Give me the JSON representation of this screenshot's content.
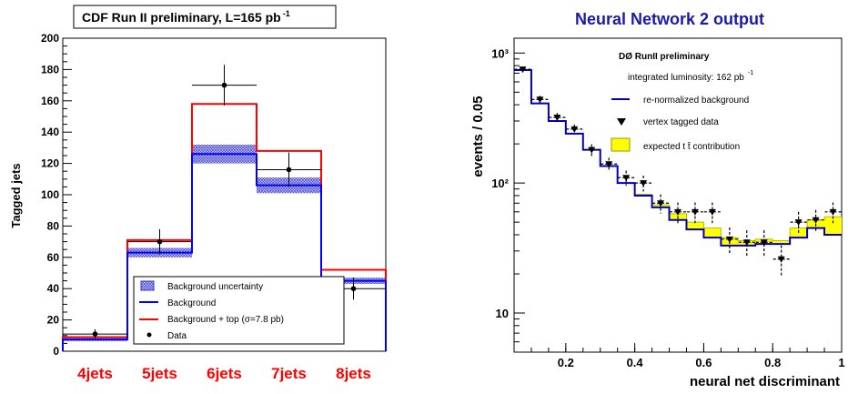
{
  "chart_data": [
    {
      "type": "bar",
      "title": "CDF Run II preliminary, L=165 pb",
      "title_sup": "-1",
      "ylabel": "Tagged jets",
      "xlabel": "",
      "ylim": [
        0,
        200
      ],
      "yticks": [
        0,
        20,
        40,
        60,
        80,
        100,
        120,
        140,
        160,
        180,
        200
      ],
      "categories": [
        "4jets",
        "5jets",
        "6jets",
        "7jets",
        "8jets"
      ],
      "category_color": "#ff0000",
      "series": [
        {
          "name": "Background",
          "values": [
            7.5,
            63,
            126,
            106,
            45
          ],
          "uncertainty_low": [
            6.5,
            60,
            120,
            101,
            43
          ],
          "uncertainty_high": [
            8.5,
            66,
            132,
            111,
            47
          ],
          "color": "#0000ff"
        },
        {
          "name": "Background + top (σ=7.8 pb)",
          "values": [
            9,
            71,
            158,
            128,
            52
          ],
          "color": "#ff0000"
        },
        {
          "name": "Data",
          "values": [
            11,
            70,
            170,
            116,
            40
          ],
          "err": [
            3,
            8,
            13,
            11,
            7
          ],
          "color": "#000000"
        }
      ],
      "uncertainty_band_name": "Background uncertainty",
      "legend": [
        "Background uncertainty",
        "Background",
        "Background + top (σ=7.8 pb)",
        "Data"
      ],
      "legend_position": "bottom-center",
      "grid": false
    },
    {
      "type": "line",
      "title": "Neural Network 2 output",
      "title_color": "#1a1aa8",
      "xlabel": "neural net discriminant",
      "ylabel": "events / 0.05",
      "yscale": "log",
      "xlim": [
        0.05,
        1.0
      ],
      "ylim": [
        5,
        1300
      ],
      "xticks": [
        0.2,
        0.4,
        0.6,
        0.8,
        1
      ],
      "ytick_labels": [
        "10",
        "10²",
        "10³"
      ],
      "yticks": [
        10,
        100,
        1000
      ],
      "x_bin_edges": [
        0.05,
        0.1,
        0.15,
        0.2,
        0.25,
        0.3,
        0.35,
        0.4,
        0.45,
        0.5,
        0.55,
        0.6,
        0.65,
        0.7,
        0.75,
        0.8,
        0.85,
        0.9,
        0.95,
        1.0
      ],
      "annotations": {
        "experiment": "DØ  RunII preliminary",
        "luminosity": "integrated luminosity: 162 pb",
        "luminosity_sup": "-1"
      },
      "series": [
        {
          "name": "re-normalized background",
          "values": [
            740,
            410,
            300,
            240,
            180,
            135,
            100,
            80,
            65,
            52,
            44,
            38,
            33,
            33,
            34,
            34,
            38,
            45,
            40
          ],
          "color": "#0000bb"
        },
        {
          "name": "expected t t̄ contribution",
          "values": [
            740,
            410,
            300,
            240,
            180,
            135,
            100,
            82,
            68,
            58,
            50,
            45,
            38,
            36,
            37,
            36,
            45,
            52,
            55
          ],
          "color": "#ffff00"
        },
        {
          "name": "vertex tagged data",
          "x": [
            0.075,
            0.125,
            0.175,
            0.225,
            0.275,
            0.325,
            0.375,
            0.425,
            0.475,
            0.525,
            0.575,
            0.625,
            0.675,
            0.725,
            0.775,
            0.825,
            0.875,
            0.925,
            0.975
          ],
          "y": [
            750,
            440,
            320,
            260,
            180,
            140,
            110,
            100,
            70,
            60,
            60,
            60,
            37,
            35,
            35,
            26,
            50,
            52,
            60
          ],
          "color": "#000000"
        }
      ],
      "legend": [
        "re-normalized background",
        "vertex tagged data",
        "expected t t̄ contribution"
      ],
      "legend_position": "top-right",
      "grid": false
    }
  ]
}
